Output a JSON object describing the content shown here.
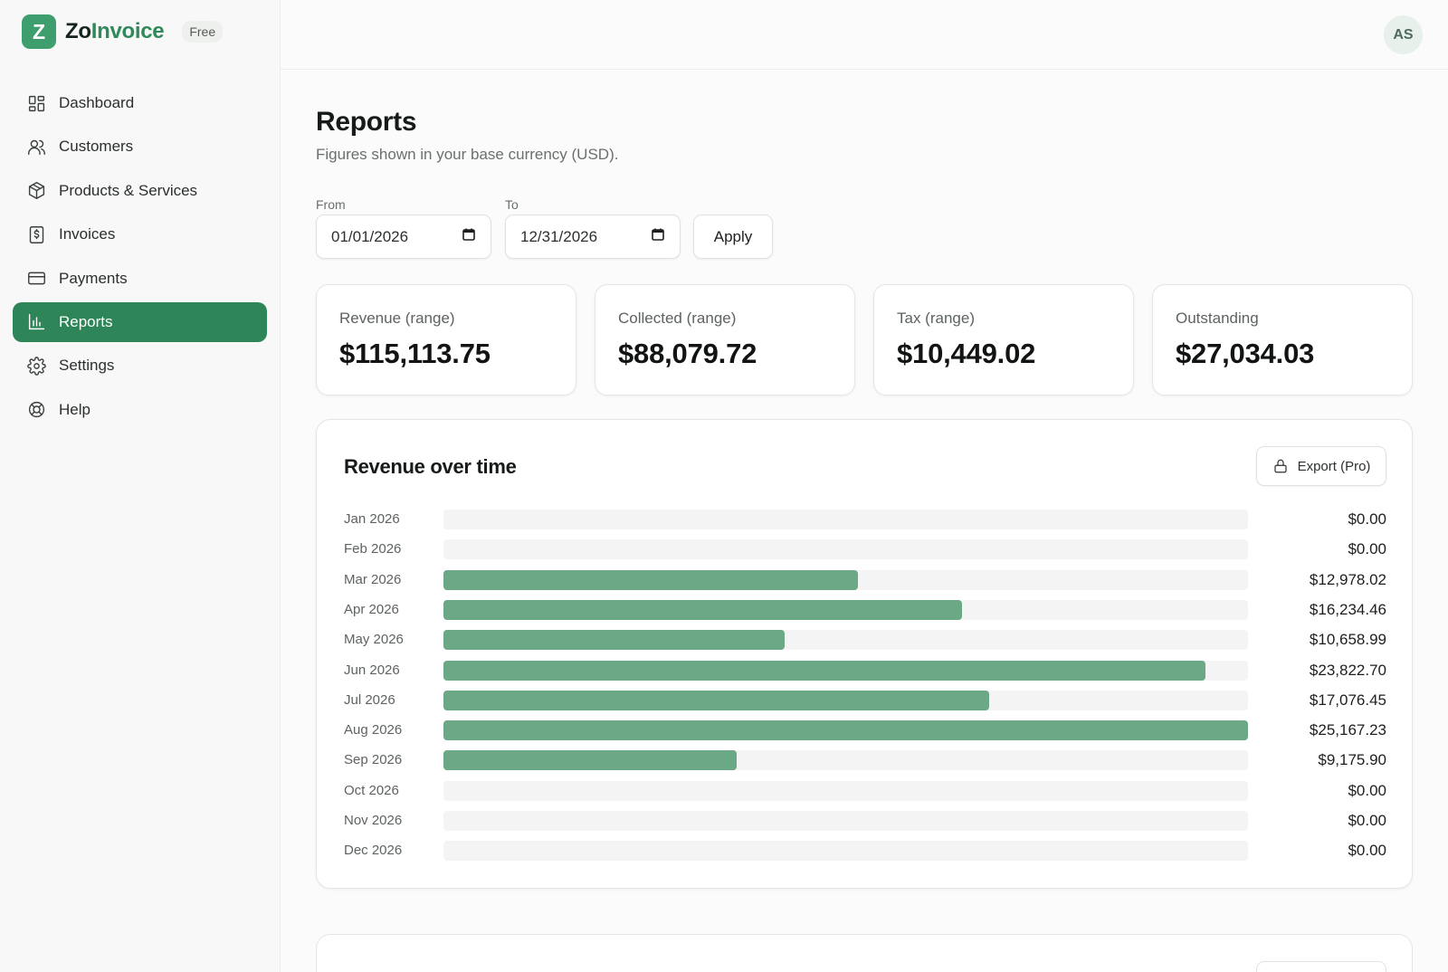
{
  "brand": {
    "logo_letter": "Z",
    "name_part1": "Zo",
    "name_part2": "Invoice",
    "plan": "Free",
    "accent_color": "#2e8557"
  },
  "user": {
    "initials": "AS"
  },
  "sidebar": {
    "items": [
      {
        "label": "Dashboard",
        "icon": "grid-icon",
        "active": false
      },
      {
        "label": "Customers",
        "icon": "users-icon",
        "active": false
      },
      {
        "label": "Products & Services",
        "icon": "box-icon",
        "active": false
      },
      {
        "label": "Invoices",
        "icon": "receipt-icon",
        "active": false
      },
      {
        "label": "Payments",
        "icon": "credit-card-icon",
        "active": false
      },
      {
        "label": "Reports",
        "icon": "bar-chart-icon",
        "active": true
      },
      {
        "label": "Settings",
        "icon": "gear-icon",
        "active": false
      },
      {
        "label": "Help",
        "icon": "life-buoy-icon",
        "active": false
      }
    ]
  },
  "page": {
    "title": "Reports",
    "subtitle": "Figures shown in your base currency (USD)."
  },
  "filters": {
    "from_label": "From",
    "from_value": "01/01/2026",
    "to_label": "To",
    "to_value": "12/31/2026",
    "apply_label": "Apply"
  },
  "stats": [
    {
      "label": "Revenue (range)",
      "value": "$115,113.75"
    },
    {
      "label": "Collected (range)",
      "value": "$88,079.72"
    },
    {
      "label": "Tax (range)",
      "value": "$10,449.02"
    },
    {
      "label": "Outstanding",
      "value": "$27,034.03"
    }
  ],
  "revenue_chart": {
    "title": "Revenue over time",
    "export_label": "Export (Pro)",
    "bar_color": "#6aa886",
    "track_color": "#f3f4f3"
  },
  "chart_data": {
    "type": "bar",
    "orientation": "horizontal",
    "title": "Revenue over time",
    "categories": [
      "Jan 2026",
      "Feb 2026",
      "Mar 2026",
      "Apr 2026",
      "May 2026",
      "Jun 2026",
      "Jul 2026",
      "Aug 2026",
      "Sep 2026",
      "Oct 2026",
      "Nov 2026",
      "Dec 2026"
    ],
    "values": [
      0,
      0,
      12978.02,
      16234.46,
      10658.99,
      23822.7,
      17076.45,
      25167.23,
      9175.9,
      0,
      0,
      0
    ],
    "value_labels": [
      "$0.00",
      "$0.00",
      "$12,978.02",
      "$16,234.46",
      "$10,658.99",
      "$23,822.70",
      "$17,076.45",
      "$25,167.23",
      "$9,175.90",
      "$0.00",
      "$0.00",
      "$0.00"
    ],
    "xlim": [
      0,
      25167.23
    ],
    "grid": false,
    "legend": "none"
  }
}
